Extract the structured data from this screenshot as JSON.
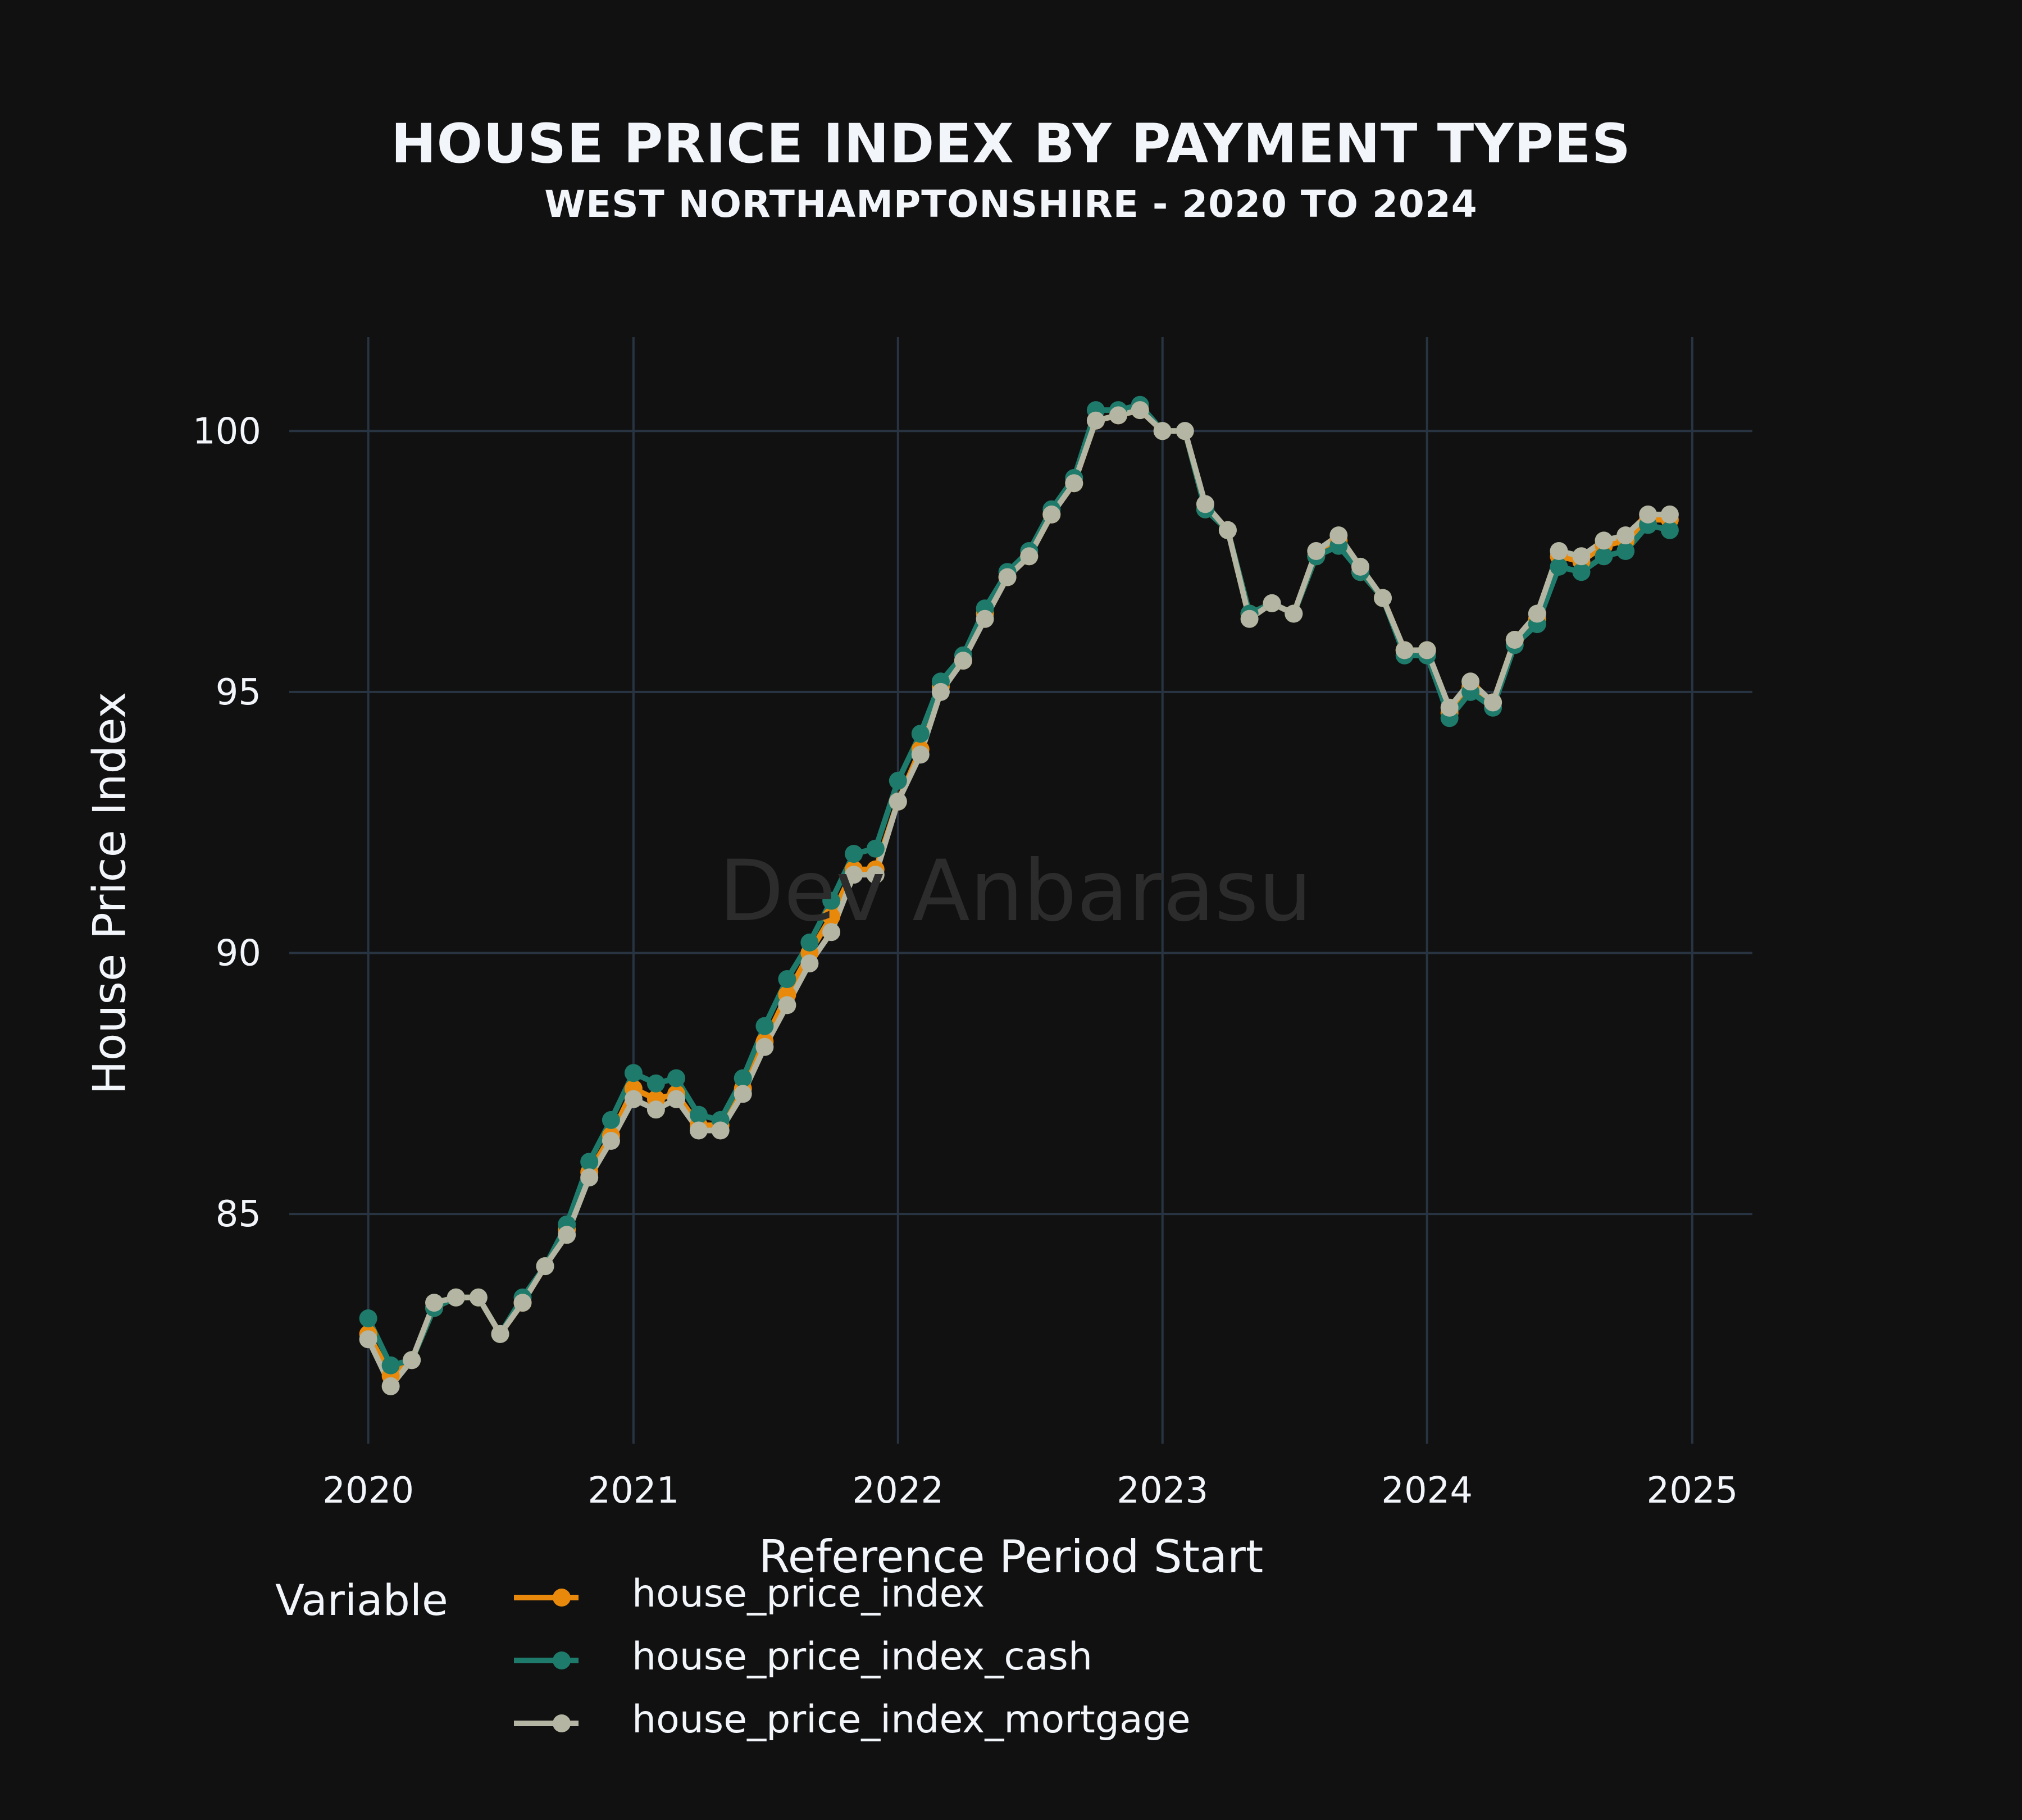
{
  "chart_data": {
    "type": "line",
    "title": "HOUSE PRICE INDEX BY PAYMENT TYPES",
    "subtitle": "WEST NORTHAMPTONSHIRE - 2020 TO 2024",
    "xlabel": "Reference Period Start",
    "ylabel": "House Price Index",
    "watermark": "Dev Anbarasu",
    "legend_title": "Variable",
    "legend_position": "bottom",
    "grid": true,
    "x_ticks": [
      "2020",
      "2021",
      "2022",
      "2023",
      "2024",
      "2025"
    ],
    "y_ticks": [
      85,
      90,
      95,
      100
    ],
    "xlim": [
      "2019-09-14",
      "2025-03-25"
    ],
    "ylim": [
      80.6,
      101.8
    ],
    "x": [
      "2020-01",
      "2020-02",
      "2020-03",
      "2020-04",
      "2020-05",
      "2020-06",
      "2020-07",
      "2020-08",
      "2020-09",
      "2020-10",
      "2020-11",
      "2020-12",
      "2021-01",
      "2021-02",
      "2021-03",
      "2021-04",
      "2021-05",
      "2021-06",
      "2021-07",
      "2021-08",
      "2021-09",
      "2021-10",
      "2021-11",
      "2021-12",
      "2022-01",
      "2022-02",
      "2022-03",
      "2022-04",
      "2022-05",
      "2022-06",
      "2022-07",
      "2022-08",
      "2022-09",
      "2022-10",
      "2022-11",
      "2022-12",
      "2023-01",
      "2023-02",
      "2023-03",
      "2023-04",
      "2023-05",
      "2023-06",
      "2023-07",
      "2023-08",
      "2023-09",
      "2023-10",
      "2023-11",
      "2023-12",
      "2024-01",
      "2024-02",
      "2024-03",
      "2024-04",
      "2024-05",
      "2024-06",
      "2024-07",
      "2024-08",
      "2024-09",
      "2024-10",
      "2024-11",
      "2024-12"
    ],
    "series": [
      {
        "name": "house_price_index",
        "color": "#e8890c",
        "values": [
          82.7,
          81.9,
          82.2,
          83.2,
          83.4,
          83.4,
          82.7,
          83.3,
          84.0,
          84.7,
          85.8,
          86.5,
          87.4,
          87.2,
          87.3,
          86.7,
          86.7,
          87.4,
          88.3,
          89.2,
          90.0,
          90.7,
          91.6,
          91.6,
          92.9,
          93.9,
          95.1,
          95.6,
          96.5,
          97.2,
          97.6,
          98.4,
          99.0,
          100.2,
          100.3,
          100.4,
          100.0,
          100.0,
          98.5,
          98.1,
          96.5,
          96.7,
          96.5,
          97.6,
          97.9,
          97.3,
          96.8,
          95.8,
          95.8,
          94.6,
          95.1,
          94.8,
          96.0,
          96.4,
          97.6,
          97.5,
          97.8,
          97.9,
          98.3,
          98.3
        ]
      },
      {
        "name": "house_price_index_cash",
        "color": "#1e7a6a",
        "values": [
          83.0,
          82.1,
          82.2,
          83.2,
          83.4,
          83.4,
          82.7,
          83.4,
          84.0,
          84.8,
          86.0,
          86.8,
          87.7,
          87.5,
          87.6,
          86.9,
          86.8,
          87.6,
          88.6,
          89.5,
          90.2,
          91.0,
          91.9,
          92.0,
          93.3,
          94.2,
          95.2,
          95.7,
          96.6,
          97.3,
          97.7,
          98.5,
          99.1,
          100.4,
          100.4,
          100.5,
          100.0,
          100.0,
          98.5,
          98.1,
          96.5,
          96.7,
          96.5,
          97.6,
          97.8,
          97.3,
          96.8,
          95.7,
          95.7,
          94.5,
          95.0,
          94.7,
          95.9,
          96.3,
          97.4,
          97.3,
          97.6,
          97.7,
          98.2,
          98.1
        ]
      },
      {
        "name": "house_price_index_mortgage",
        "color": "#b4b5a2",
        "values": [
          82.6,
          81.7,
          82.2,
          83.3,
          83.4,
          83.4,
          82.7,
          83.3,
          84.0,
          84.6,
          85.7,
          86.4,
          87.2,
          87.0,
          87.2,
          86.6,
          86.6,
          87.3,
          88.2,
          89.0,
          89.8,
          90.4,
          91.5,
          91.5,
          92.9,
          93.8,
          95.0,
          95.6,
          96.4,
          97.2,
          97.6,
          98.4,
          99.0,
          100.2,
          100.3,
          100.4,
          100.0,
          100.0,
          98.6,
          98.1,
          96.4,
          96.7,
          96.5,
          97.7,
          98.0,
          97.4,
          96.8,
          95.8,
          95.8,
          94.7,
          95.2,
          94.8,
          96.0,
          96.5,
          97.7,
          97.6,
          97.9,
          98.0,
          98.4,
          98.4
        ]
      }
    ]
  }
}
